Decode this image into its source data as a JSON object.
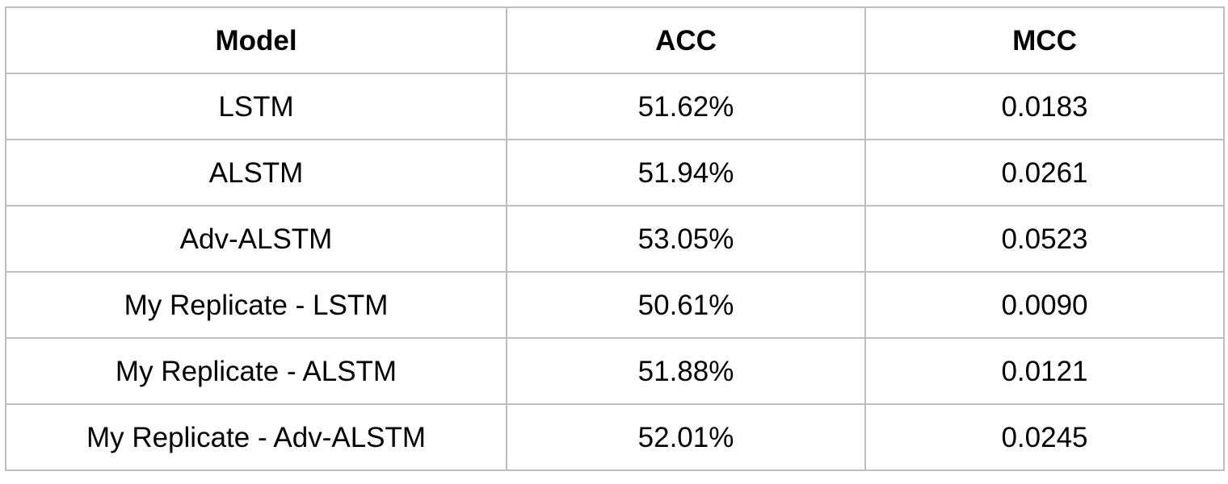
{
  "table": {
    "headers": [
      "Model",
      "ACC",
      "MCC"
    ],
    "rows": [
      [
        "LSTM",
        "51.62%",
        "0.0183"
      ],
      [
        "ALSTM",
        "51.94%",
        "0.0261"
      ],
      [
        "Adv-ALSTM",
        "53.05%",
        "0.0523"
      ],
      [
        "My Replicate - LSTM",
        "50.61%",
        "0.0090"
      ],
      [
        "My Replicate - ALSTM",
        "51.88%",
        "0.0121"
      ],
      [
        "My Replicate - Adv-ALSTM",
        "52.01%",
        "0.0245"
      ]
    ]
  },
  "colors": {
    "border": "#bdbdbd",
    "text": "#000000",
    "background": "#ffffff"
  }
}
